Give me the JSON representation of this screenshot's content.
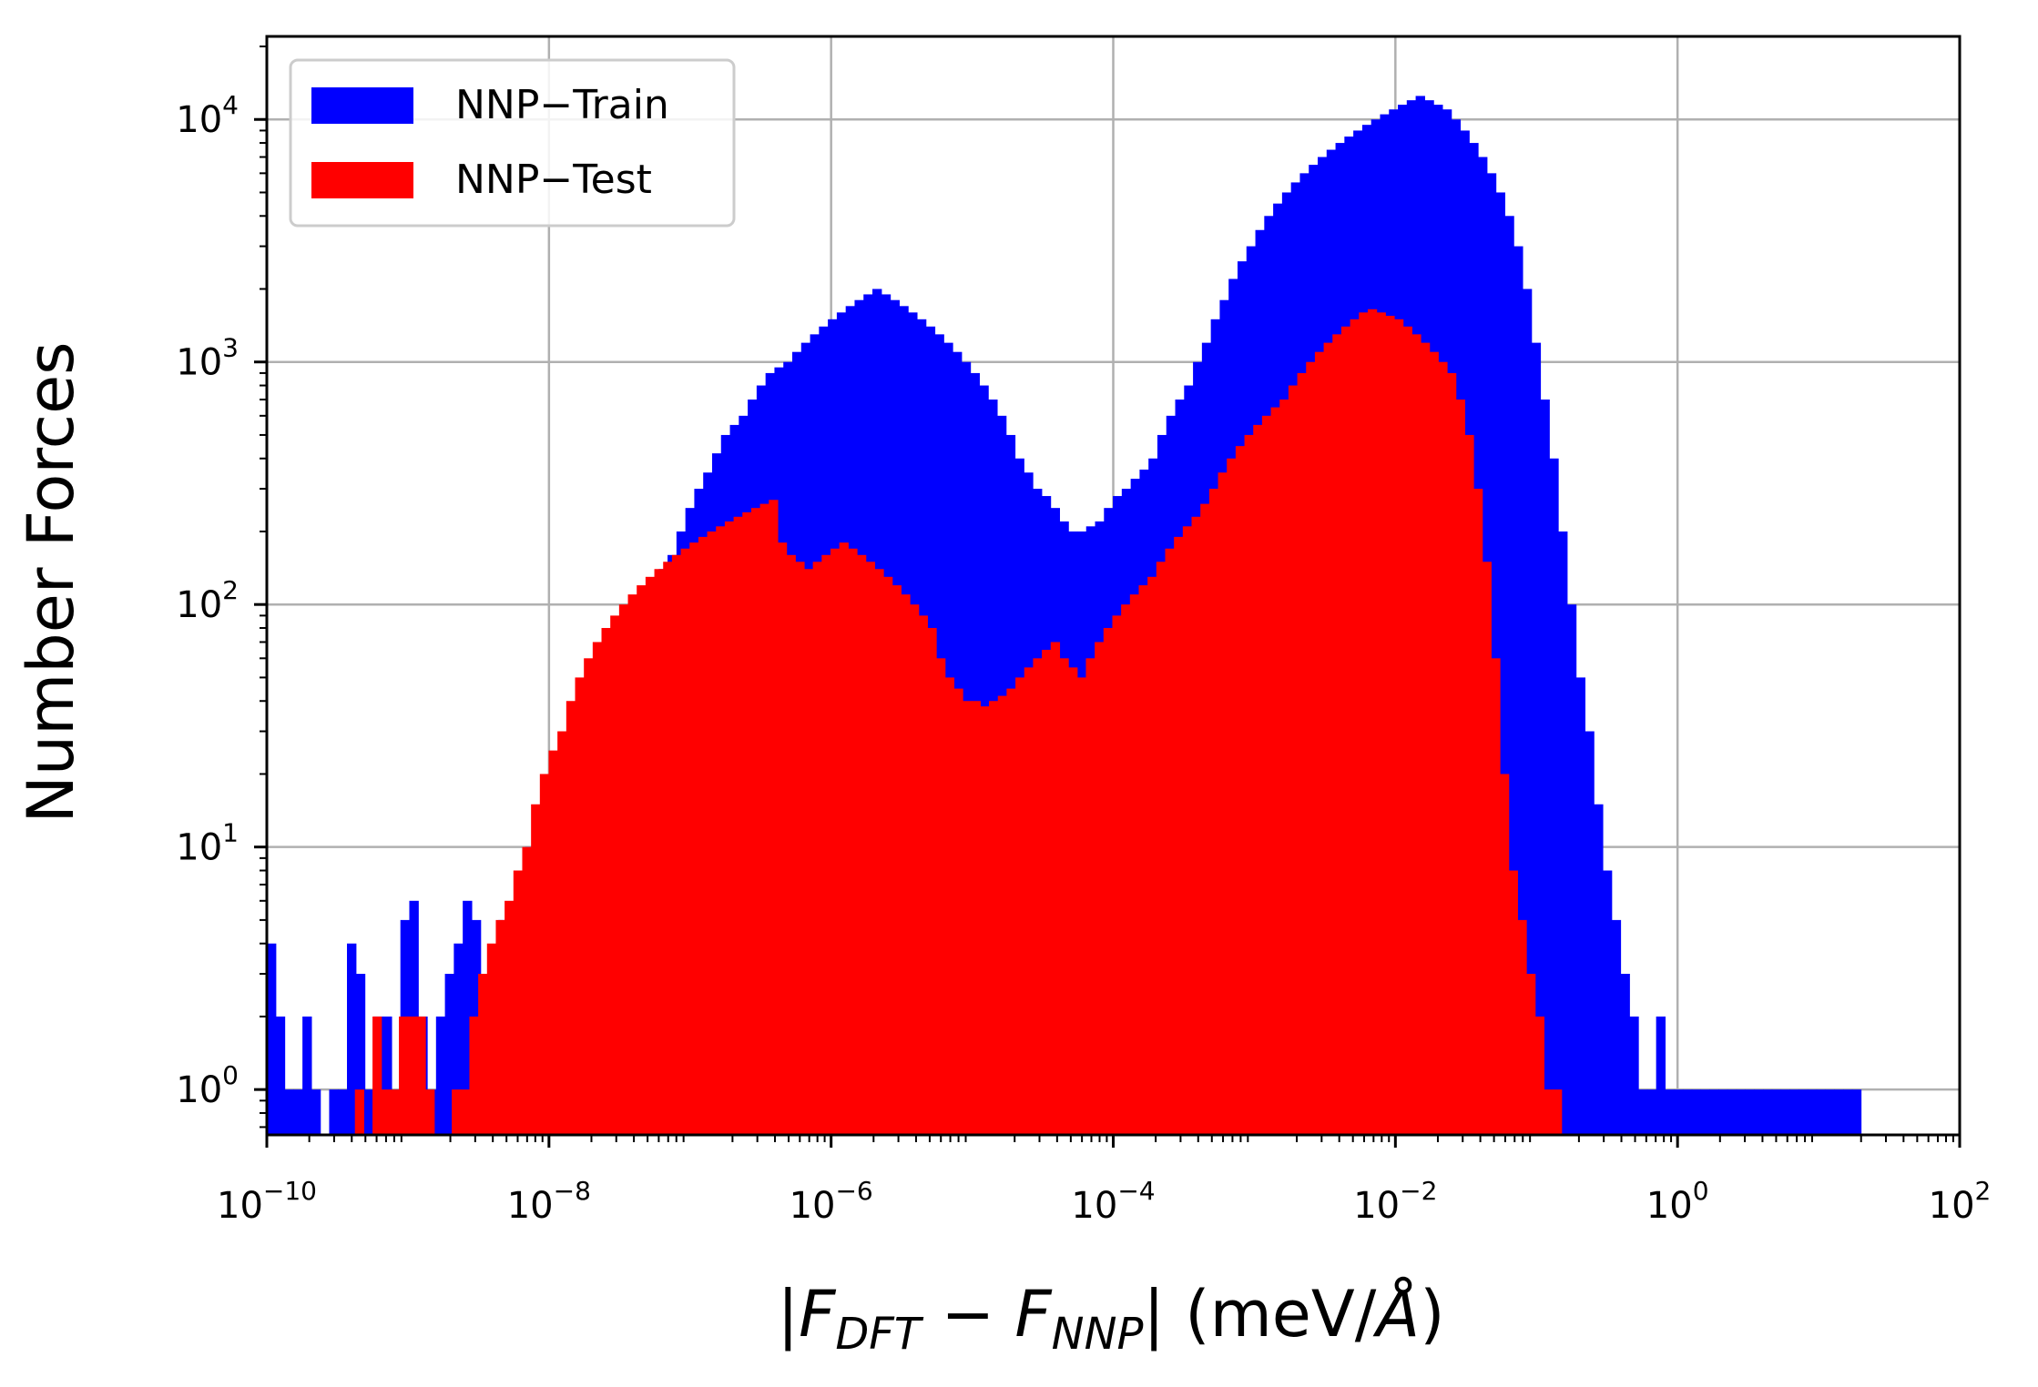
{
  "chart_data": {
    "type": "bar",
    "subtype": "histogram",
    "title": "",
    "xlabel": {
      "pre": "|",
      "f1": "F",
      "s1": "DFT",
      "op": " − ",
      "f2": "F",
      "s2": "NNP",
      "post": "| (meV/",
      "unit": "Å",
      "end": ")"
    },
    "ylabel": "Number Forces",
    "xscale": "log",
    "yscale": "log",
    "xlim": [
      1e-10,
      100
    ],
    "ylim": [
      0.65,
      22000
    ],
    "grid": true,
    "legend_position": "top-left",
    "x_ticks": [
      {
        "base": "10",
        "exp": "−10",
        "value": 1e-10
      },
      {
        "base": "10",
        "exp": "−8",
        "value": 1e-08
      },
      {
        "base": "10",
        "exp": "−6",
        "value": 1e-06
      },
      {
        "base": "10",
        "exp": "−4",
        "value": 0.0001
      },
      {
        "base": "10",
        "exp": "−2",
        "value": 0.01
      },
      {
        "base": "10",
        "exp": "0",
        "value": 1
      },
      {
        "base": "10",
        "exp": "2",
        "value": 100
      }
    ],
    "y_ticks": [
      {
        "base": "10",
        "exp": "0",
        "value": 1
      },
      {
        "base": "10",
        "exp": "1",
        "value": 10
      },
      {
        "base": "10",
        "exp": "2",
        "value": 100
      },
      {
        "base": "10",
        "exp": "3",
        "value": 1000
      },
      {
        "base": "10",
        "exp": "4",
        "value": 10000
      }
    ],
    "series": [
      {
        "name": "NNP−Train",
        "color": "#0000ff",
        "log10_x_range": [
          -10,
          1.3
        ],
        "counts": [
          4,
          2,
          1,
          1,
          2,
          1,
          0,
          1,
          1,
          4,
          3,
          1,
          2,
          2,
          1,
          5,
          6,
          2,
          1,
          2,
          3,
          4,
          6,
          5,
          3,
          3,
          5,
          5,
          8,
          10,
          12,
          15,
          20,
          25,
          30,
          35,
          40,
          50,
          60,
          70,
          75,
          80,
          90,
          110,
          140,
          160,
          200,
          250,
          300,
          350,
          420,
          500,
          550,
          600,
          700,
          800,
          900,
          950,
          1000,
          1100,
          1200,
          1300,
          1400,
          1500,
          1600,
          1700,
          1800,
          1900,
          2000,
          1900,
          1800,
          1700,
          1600,
          1500,
          1400,
          1300,
          1200,
          1100,
          1000,
          900,
          800,
          700,
          600,
          500,
          400,
          350,
          300,
          280,
          250,
          220,
          200,
          200,
          210,
          220,
          250,
          280,
          300,
          330,
          360,
          400,
          500,
          600,
          700,
          800,
          1000,
          1200,
          1500,
          1800,
          2200,
          2600,
          3000,
          3500,
          4000,
          4500,
          5000,
          5500,
          6000,
          6500,
          7000,
          7500,
          8000,
          8500,
          9000,
          9500,
          10000,
          10500,
          11000,
          11500,
          12000,
          12500,
          12000,
          11500,
          11000,
          10000,
          9000,
          8000,
          7000,
          6000,
          5000,
          4000,
          3000,
          2000,
          1200,
          700,
          400,
          200,
          100,
          50,
          30,
          15,
          8,
          5,
          3,
          2,
          1,
          1,
          2,
          1,
          1,
          1,
          1,
          1,
          1,
          1,
          1,
          1,
          1,
          1,
          1,
          1,
          1,
          1,
          1,
          1,
          1,
          1,
          1,
          1,
          1
        ]
      },
      {
        "name": "NNP−Test",
        "color": "#ff0000",
        "log10_x_range": [
          -10,
          1.3
        ],
        "counts": [
          0,
          0,
          0,
          0,
          0,
          0,
          0,
          0,
          0,
          0,
          1,
          0,
          2,
          1,
          1,
          2,
          2,
          2,
          1,
          0,
          0,
          1,
          1,
          2,
          3,
          4,
          5,
          6,
          8,
          10,
          15,
          20,
          25,
          30,
          40,
          50,
          60,
          70,
          80,
          90,
          100,
          110,
          120,
          130,
          140,
          150,
          160,
          170,
          180,
          190,
          200,
          210,
          220,
          230,
          240,
          250,
          260,
          270,
          180,
          160,
          150,
          140,
          150,
          160,
          170,
          180,
          170,
          160,
          150,
          140,
          130,
          120,
          110,
          100,
          90,
          80,
          60,
          50,
          45,
          40,
          40,
          38,
          40,
          42,
          45,
          50,
          55,
          60,
          65,
          70,
          60,
          55,
          50,
          60,
          70,
          80,
          90,
          100,
          110,
          120,
          130,
          150,
          170,
          190,
          210,
          230,
          260,
          300,
          350,
          400,
          450,
          500,
          550,
          600,
          650,
          700,
          800,
          900,
          1000,
          1100,
          1200,
          1300,
          1400,
          1500,
          1600,
          1650,
          1600,
          1550,
          1500,
          1400,
          1300,
          1200,
          1100,
          1000,
          900,
          700,
          500,
          300,
          150,
          60,
          20,
          8,
          5,
          3,
          2,
          1,
          1,
          0,
          0,
          0,
          0,
          0,
          0,
          0,
          0,
          0,
          0,
          0,
          0,
          0,
          0,
          0,
          0,
          0,
          0,
          0,
          0,
          0,
          0,
          0,
          0,
          0,
          0,
          0,
          0,
          0,
          0,
          0,
          0,
          0,
          0
        ]
      }
    ]
  }
}
